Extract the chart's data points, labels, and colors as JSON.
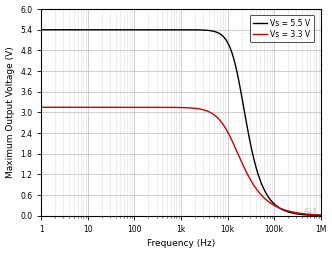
{
  "title": "",
  "xlabel": "Frequency (Hz)",
  "ylabel": "Maximum Output Voltage (V)",
  "ylim": [
    0,
    6
  ],
  "xlim": [
    1,
    1000000
  ],
  "yticks": [
    0,
    0.6,
    1.2,
    1.8,
    2.4,
    3.0,
    3.6,
    4.2,
    4.8,
    5.4,
    6.0
  ],
  "line1_color": "#000000",
  "line2_color": "#cc0000",
  "line1_label": "Vs = 5.5 V",
  "line2_label": "Vs = 3.3 V",
  "line1_flat": 5.4,
  "line2_flat": 3.15,
  "line1_fc": 18000,
  "line2_fc": 12000,
  "line1_order": 1.6,
  "line2_order": 1.1,
  "bg_color": "#ffffff",
  "grid_major_color": "#bbbbbb",
  "grid_minor_color": "#dddddd",
  "watermark": "A13"
}
